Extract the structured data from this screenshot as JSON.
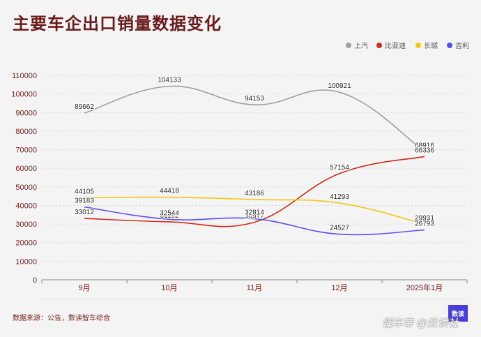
{
  "page": {
    "title": "主要车企出口销量数据变化",
    "source": "数据来源：公告，数读智车综合",
    "logo_text": "数读",
    "watermark": "懂车帝 @数读社"
  },
  "chart_data": {
    "type": "line",
    "categories": [
      "9月",
      "10月",
      "11月",
      "12月",
      "2025年1月"
    ],
    "ylim": [
      0,
      110000
    ],
    "yticks": [
      0,
      10000,
      20000,
      30000,
      40000,
      50000,
      60000,
      70000,
      80000,
      90000,
      100000,
      110000
    ],
    "grid": true,
    "legend_position": "top-right",
    "series": [
      {
        "name": "上汽",
        "color": "#a0a0a0",
        "values": [
          89662,
          104133,
          94153,
          100921,
          68916
        ]
      },
      {
        "name": "比亚迪",
        "color": "#d02a1a",
        "values": [
          33012,
          31192,
          30977,
          57154,
          66336
        ]
      },
      {
        "name": "长城",
        "color": "#f5c518",
        "values": [
          44105,
          44418,
          43186,
          41293,
          29931
        ]
      },
      {
        "name": "吉利",
        "color": "#5a4ef0",
        "values": [
          39183,
          32544,
          32814,
          24527,
          26793
        ]
      }
    ]
  }
}
